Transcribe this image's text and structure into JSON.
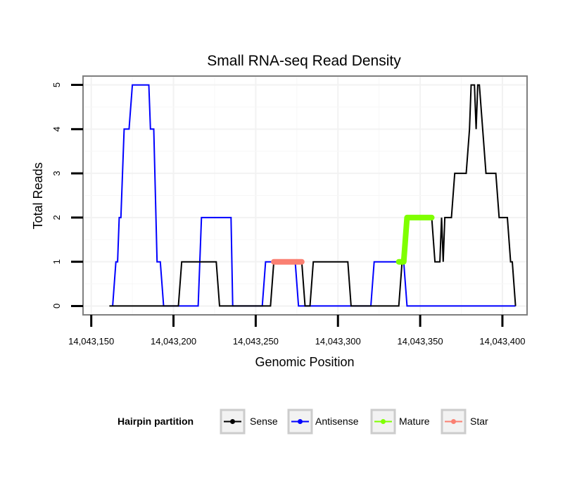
{
  "chart_data": {
    "type": "line",
    "title": "Small RNA-seq Read Density",
    "xlabel": "Genomic Position",
    "ylabel": "Total Reads",
    "xlim": [
      14043145,
      14043415
    ],
    "ylim": [
      -0.2,
      5.2
    ],
    "x_ticks": [
      14043150,
      14043200,
      14043250,
      14043300,
      14043350,
      14043400
    ],
    "x_tick_labels": [
      "14,043,150",
      "14,043,200",
      "14,043,250",
      "14,043,300",
      "14,043,350",
      "14,043,400"
    ],
    "y_ticks": [
      0,
      1,
      2,
      3,
      4,
      5
    ],
    "y_tick_labels": [
      "0",
      "1",
      "2",
      "3",
      "4",
      "5"
    ],
    "grid": true,
    "legend": {
      "title": "Hairpin partition",
      "position": "bottom",
      "entries": [
        {
          "label": "Sense",
          "color": "#000000"
        },
        {
          "label": "Antisense",
          "color": "#0000ff"
        },
        {
          "label": "Mature",
          "color": "#7fff00"
        },
        {
          "label": "Star",
          "color": "#fa8072"
        }
      ]
    },
    "series": [
      {
        "name": "Antisense",
        "color": "#0000ff",
        "points": [
          [
            14043163,
            0
          ],
          [
            14043165,
            1
          ],
          [
            14043166,
            1
          ],
          [
            14043167,
            2
          ],
          [
            14043168,
            2
          ],
          [
            14043170,
            4
          ],
          [
            14043173,
            4
          ],
          [
            14043175,
            5
          ],
          [
            14043185,
            5
          ],
          [
            14043186,
            4
          ],
          [
            14043188,
            4
          ],
          [
            14043190,
            1
          ],
          [
            14043192,
            1
          ],
          [
            14043194,
            0
          ],
          [
            14043215,
            0
          ],
          [
            14043217,
            2
          ],
          [
            14043235,
            2
          ],
          [
            14043236,
            0
          ],
          [
            14043254,
            0
          ],
          [
            14043256,
            1
          ],
          [
            14043274,
            1
          ],
          [
            14043276,
            0
          ],
          [
            14043320,
            0
          ],
          [
            14043322,
            1
          ],
          [
            14043340,
            1
          ],
          [
            14043342,
            0
          ],
          [
            14043408,
            0
          ]
        ]
      },
      {
        "name": "Sense",
        "color": "#000000",
        "points": [
          [
            14043161,
            0
          ],
          [
            14043203,
            0
          ],
          [
            14043205,
            1
          ],
          [
            14043226,
            1
          ],
          [
            14043228,
            0
          ],
          [
            14043259,
            0
          ],
          [
            14043261,
            1
          ],
          [
            14043278,
            1
          ],
          [
            14043280,
            0
          ],
          [
            14043283,
            0
          ],
          [
            14043285,
            1
          ],
          [
            14043306,
            1
          ],
          [
            14043308,
            0
          ],
          [
            14043337,
            0
          ],
          [
            14043339,
            1
          ],
          [
            14043342,
            2
          ],
          [
            14043357,
            2
          ],
          [
            14043359,
            1
          ],
          [
            14043362,
            1
          ],
          [
            14043363,
            2
          ],
          [
            14043364,
            1
          ],
          [
            14043365,
            2
          ],
          [
            14043369,
            2
          ],
          [
            14043371,
            3
          ],
          [
            14043378,
            3
          ],
          [
            14043380,
            4
          ],
          [
            14043381,
            5
          ],
          [
            14043383,
            5
          ],
          [
            14043384,
            4
          ],
          [
            14043385,
            5
          ],
          [
            14043386,
            5
          ],
          [
            14043388,
            4
          ],
          [
            14043390,
            3
          ],
          [
            14043396,
            3
          ],
          [
            14043398,
            2
          ],
          [
            14043403,
            2
          ],
          [
            14043405,
            1
          ],
          [
            14043406,
            1
          ],
          [
            14043408,
            0
          ]
        ]
      },
      {
        "name": "Star",
        "color": "#fa8072",
        "points": [
          [
            14043261,
            1
          ],
          [
            14043278,
            1
          ]
        ]
      },
      {
        "name": "Mature",
        "color": "#7fff00",
        "points": [
          [
            14043337,
            1
          ],
          [
            14043340,
            1
          ],
          [
            14043342,
            2
          ],
          [
            14043357,
            2
          ]
        ]
      }
    ]
  }
}
